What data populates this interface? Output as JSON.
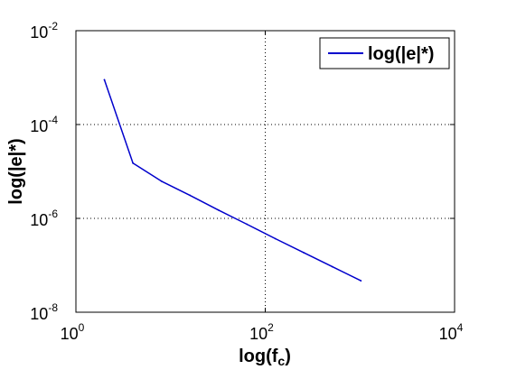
{
  "chart_data": {
    "type": "line",
    "title": "",
    "xlabel": "log(f_c)",
    "xlabel_main": "log(f",
    "xlabel_sub": "c",
    "xlabel_tail": ")",
    "ylabel": "log(|e|*)",
    "xscale": "log",
    "yscale": "log",
    "xlim": [
      1,
      10000
    ],
    "ylim": [
      1e-08,
      0.01
    ],
    "grid": true,
    "legend_position": "top-right",
    "x_ticks": [
      {
        "value": 1,
        "base": "10",
        "exp": "0"
      },
      {
        "value": 100,
        "base": "10",
        "exp": "2"
      },
      {
        "value": 10000,
        "base": "10",
        "exp": "4"
      }
    ],
    "y_ticks": [
      {
        "value": 1e-08,
        "base": "10",
        "exp": "-8"
      },
      {
        "value": 1e-06,
        "base": "10",
        "exp": "-6"
      },
      {
        "value": 0.0001,
        "base": "10",
        "exp": "-4"
      },
      {
        "value": 0.01,
        "base": "10",
        "exp": "-2"
      }
    ],
    "series": [
      {
        "name": "log(|e|*)",
        "color": "#0000cc",
        "x": [
          2,
          4,
          8,
          16,
          32,
          64,
          128,
          256,
          512,
          1024
        ],
        "y": [
          0.0009,
          1.5e-05,
          6.2e-06,
          3.1e-06,
          1.5e-06,
          7.5e-07,
          3.7e-07,
          1.85e-07,
          9.3e-08,
          4.7e-08
        ]
      }
    ]
  }
}
